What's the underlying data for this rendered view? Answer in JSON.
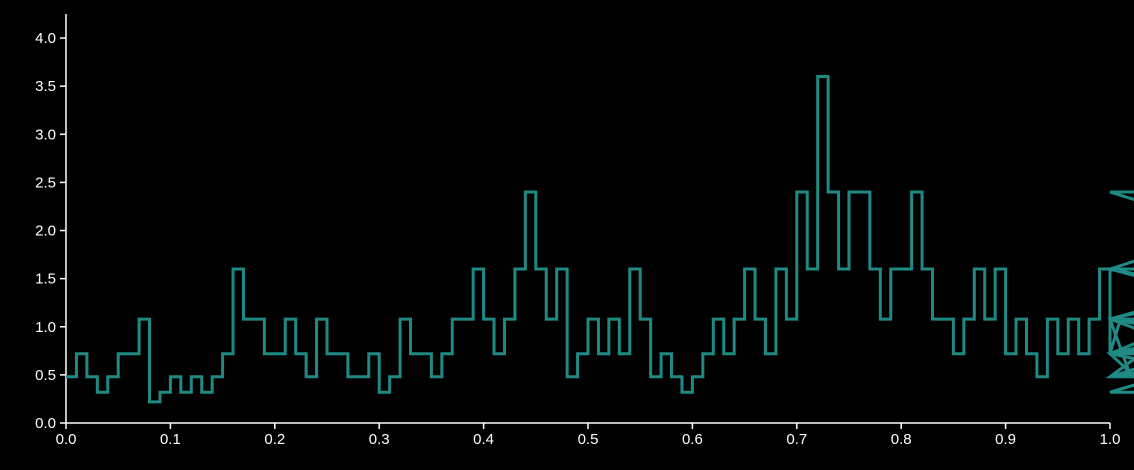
{
  "chart_data": {
    "type": "line",
    "style": "step",
    "title": "",
    "xlabel": "",
    "ylabel": "",
    "xlim": [
      0.0,
      1.0
    ],
    "ylim": [
      0.0,
      4.25
    ],
    "xticks": [
      "0.0",
      "0.1",
      "0.2",
      "0.3",
      "0.4",
      "0.5",
      "0.6",
      "0.7",
      "0.8",
      "0.9",
      "1.0"
    ],
    "yticks": [
      "0.0",
      "0.5",
      "1.0",
      "1.5",
      "2.0",
      "2.5",
      "3.0",
      "3.5",
      "4.0"
    ],
    "grid": false,
    "legend": "none",
    "bin_width": 0.01,
    "colors": {
      "background": "#000000",
      "axis": "#ffffff",
      "series": "#1f8a84"
    },
    "series": [
      {
        "values": [
          0.48,
          0.72,
          0.48,
          0.32,
          0.48,
          0.72,
          0.72,
          1.08,
          0.22,
          0.32,
          0.48,
          0.32,
          0.48,
          0.32,
          0.48,
          0.72,
          1.6,
          1.08,
          1.08,
          0.72,
          0.72,
          1.08,
          0.72,
          0.48,
          1.08,
          0.72,
          0.72,
          0.48,
          0.48,
          0.72,
          0.32,
          0.48,
          1.08,
          0.72,
          0.72,
          0.48,
          0.72,
          1.08,
          1.08,
          1.6,
          1.08,
          0.72,
          1.08,
          1.6,
          2.4,
          1.6,
          1.08,
          1.6,
          0.48,
          0.72,
          1.08,
          0.72,
          1.08,
          0.72,
          1.6,
          1.08,
          0.48,
          0.72,
          0.48,
          0.32,
          0.48,
          0.72,
          1.08,
          0.72,
          1.08,
          1.6,
          1.08,
          0.72,
          1.6,
          1.08,
          2.4,
          1.6,
          3.6,
          2.4,
          1.6,
          2.4,
          2.4,
          1.6,
          1.08,
          1.6,
          1.6,
          2.4,
          1.6,
          1.08,
          1.08,
          0.72,
          1.08,
          1.6,
          1.08,
          1.6,
          0.72,
          1.08,
          0.72,
          0.48,
          1.08,
          0.72,
          1.08,
          0.72,
          1.08,
          1.6,
          0.72,
          1.08,
          0.48,
          0.72,
          0.32,
          0.48,
          0.48,
          0.72,
          1.08,
          0.72,
          0.72,
          0.48,
          0.48,
          0.72,
          0.72,
          1.08,
          1.08,
          1.6,
          1.08,
          0.72,
          1.08,
          1.6,
          1.6,
          2.4,
          1.6,
          1.08,
          0.72,
          1.08
        ]
      }
    ]
  }
}
